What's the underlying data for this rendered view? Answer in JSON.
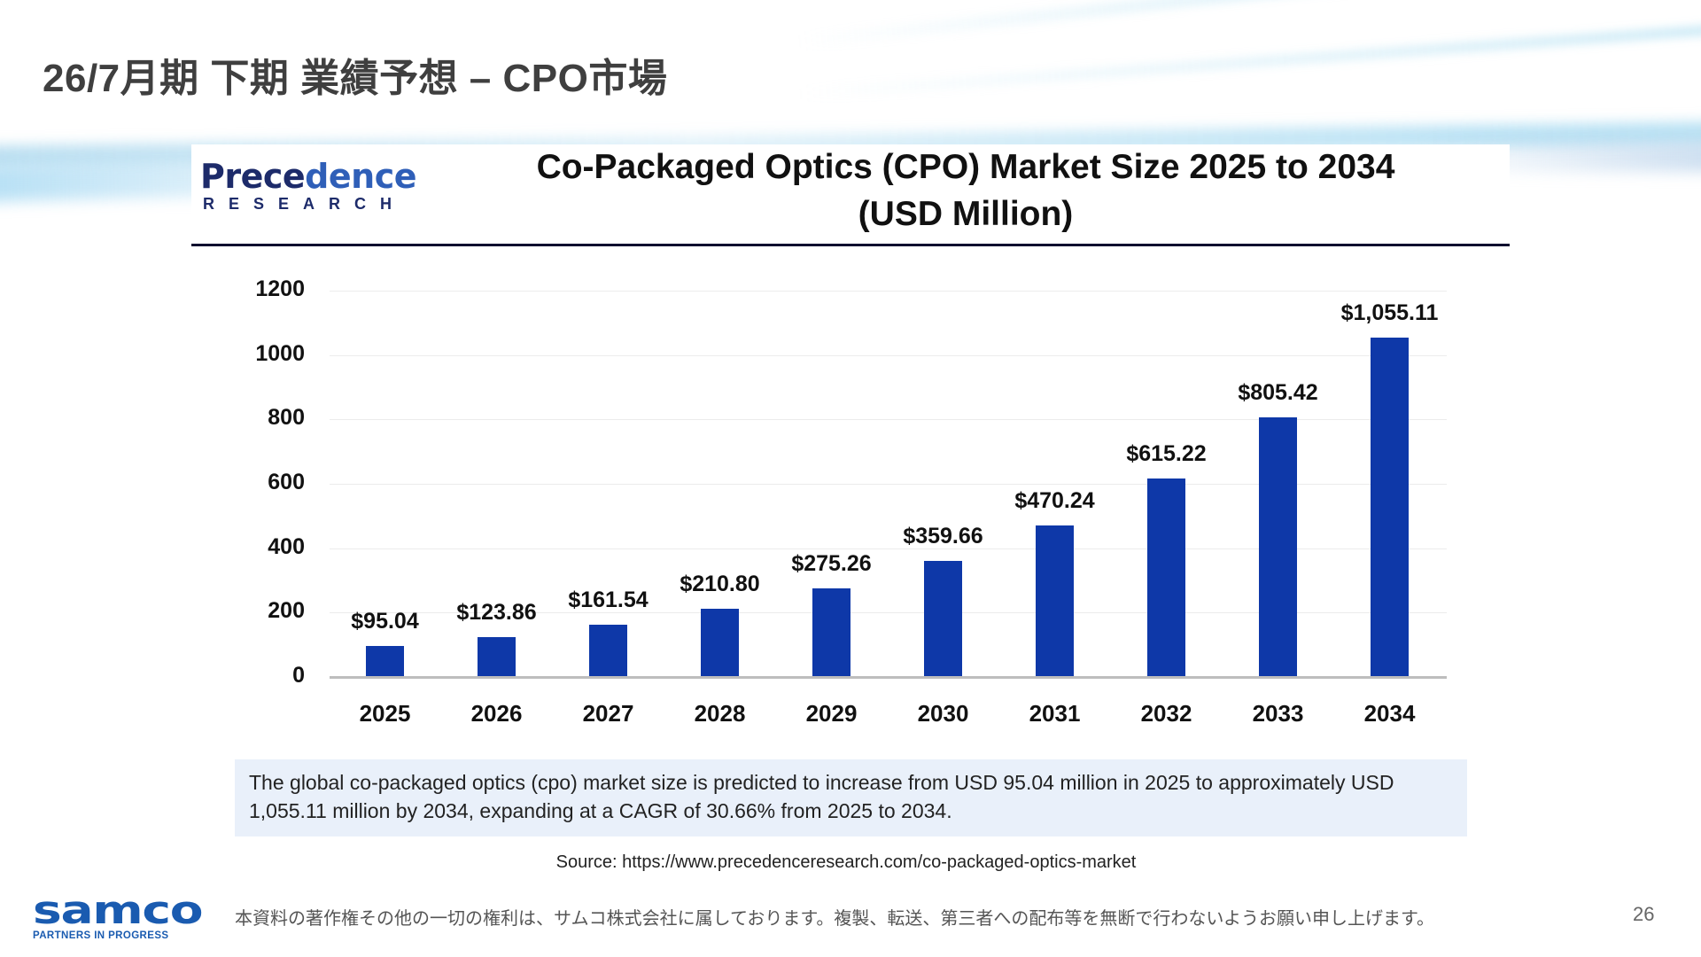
{
  "slide": {
    "title": "26/7月期 下期 業績予想 – CPO市場",
    "page_number": "26",
    "copyright": "本資料の著作権その他の一切の権利は、サムコ株式会社に属しております。複製、転送、第三者への配布等を無断で行わないようお願い申し上げます。",
    "logo": {
      "word": "samco",
      "tagline": "PARTNERS IN PROGRESS",
      "color": "#1a5bb0"
    }
  },
  "source_logo": {
    "main_dark": "Prece",
    "main_light": "dence",
    "sub": "RESEARCH"
  },
  "note": "The global co-packaged optics (cpo) market size is predicted to increase from USD 95.04 million in 2025 to approximately USD 1,055.11 million by 2034, expanding at a CAGR of 30.66% from 2025 to 2034.",
  "source": "Source: https://www.precedenceresearch.com/co-packaged-optics-market",
  "chart_data": {
    "type": "bar",
    "title": "Co-Packaged Optics (CPO) Market Size 2025 to 2034",
    "subtitle": "(USD Million)",
    "xlabel": "",
    "ylabel": "",
    "categories": [
      "2025",
      "2026",
      "2027",
      "2028",
      "2029",
      "2030",
      "2031",
      "2032",
      "2033",
      "2034"
    ],
    "values": [
      95.04,
      123.86,
      161.54,
      210.8,
      275.26,
      359.66,
      470.24,
      615.22,
      805.42,
      1055.11
    ],
    "data_labels": [
      "$95.04",
      "$123.86",
      "$161.54",
      "$210.80",
      "$275.26",
      "$359.66",
      "$470.24",
      "$615.22",
      "$805.42",
      "$1,055.11"
    ],
    "ylim": [
      0,
      1200
    ],
    "yticks": [
      0,
      200,
      400,
      600,
      800,
      1000,
      1200
    ],
    "grid": true,
    "legend": "none",
    "bar_color": "#0e38a8"
  }
}
